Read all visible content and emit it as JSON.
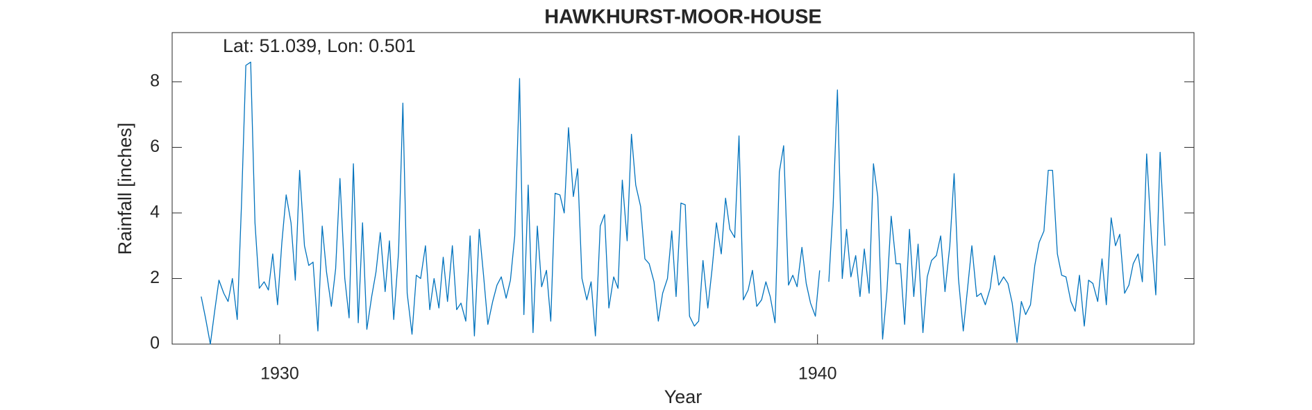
{
  "chart_data": {
    "type": "line",
    "title": "HAWKHURST-MOOR-HOUSE",
    "annotation": "Lat: 51.039, Lon: 0.501",
    "xlabel": "Year",
    "ylabel": "Rainfall [inches]",
    "color": "#0072BD",
    "xlim": [
      1928,
      1947
    ],
    "xticks": [
      1930,
      1940
    ],
    "ylim": [
      0,
      9.5
    ],
    "yticks": [
      0,
      2,
      4,
      6,
      8
    ],
    "grid": false,
    "x": [
      1928.54,
      1928.62,
      1928.71,
      1928.79,
      1928.87,
      1928.96,
      1929.04,
      1929.12,
      1929.21,
      1929.29,
      1929.37,
      1929.46,
      1929.54,
      1929.62,
      1929.71,
      1929.79,
      1929.87,
      1929.96,
      1930.04,
      1930.12,
      1930.21,
      1930.29,
      1930.37,
      1930.46,
      1930.54,
      1930.62,
      1930.71,
      1930.79,
      1930.87,
      1930.96,
      1931.04,
      1931.12,
      1931.21,
      1931.29,
      1931.37,
      1931.46,
      1931.54,
      1931.62,
      1931.71,
      1931.79,
      1931.87,
      1931.96,
      1932.04,
      1932.12,
      1932.21,
      1932.29,
      1932.37,
      1932.46,
      1932.54,
      1932.62,
      1932.71,
      1932.79,
      1932.87,
      1932.96,
      1933.04,
      1933.12,
      1933.21,
      1933.29,
      1933.37,
      1933.46,
      1933.54,
      1933.62,
      1933.71,
      1933.79,
      1933.87,
      1933.96,
      1934.04,
      1934.12,
      1934.21,
      1934.29,
      1934.37,
      1934.46,
      1934.54,
      1934.62,
      1934.71,
      1934.79,
      1934.87,
      1934.96,
      1935.04,
      1935.12,
      1935.21,
      1935.29,
      1935.37,
      1935.46,
      1935.54,
      1935.62,
      1935.71,
      1935.79,
      1935.87,
      1935.96,
      1936.04,
      1936.12,
      1936.21,
      1936.29,
      1936.37,
      1936.46,
      1936.54,
      1936.62,
      1936.71,
      1936.79,
      1936.87,
      1936.96,
      1937.04,
      1937.12,
      1937.21,
      1937.29,
      1937.37,
      1937.46,
      1937.54,
      1937.62,
      1937.71,
      1937.79,
      1937.87,
      1937.96,
      1938.04,
      1938.12,
      1938.21,
      1938.29,
      1938.37,
      1938.46,
      1938.54,
      1938.62,
      1938.71,
      1938.79,
      1938.87,
      1938.96,
      1939.04,
      1939.12,
      1939.21,
      1939.29,
      1939.37,
      1939.46,
      1939.54,
      1939.62,
      1939.71,
      1939.79,
      1939.87,
      1939.96,
      1940.04,
      1940.12,
      1940.21,
      1940.29,
      1940.37,
      1940.46,
      1940.54,
      1940.62,
      1940.71,
      1940.79,
      1940.87,
      1940.96,
      1941.04,
      1941.12,
      1941.21,
      1941.29,
      1941.37,
      1941.46,
      1941.54,
      1941.62,
      1941.71,
      1941.79,
      1941.87,
      1941.96,
      1942.04,
      1942.12,
      1942.21,
      1942.29,
      1942.37,
      1942.46,
      1942.54,
      1942.62,
      1942.71,
      1942.79,
      1942.87,
      1942.96,
      1943.04,
      1943.12,
      1943.21,
      1943.29,
      1943.37,
      1943.46,
      1943.54,
      1943.62,
      1943.71,
      1943.79,
      1943.87,
      1943.96,
      1944.04,
      1944.12,
      1944.21,
      1944.29,
      1944.37,
      1944.46,
      1944.54,
      1944.62,
      1944.71,
      1944.79,
      1944.87,
      1944.96,
      1945.04,
      1945.12,
      1945.21,
      1945.29,
      1945.37,
      1945.46,
      1945.54,
      1945.62,
      1945.71,
      1945.79,
      1945.87,
      1945.96,
      1946.04,
      1946.12,
      1946.21,
      1946.29,
      1946.37,
      1946.46
    ],
    "values": [
      1.45,
      0.8,
      0,
      1.0,
      1.95,
      1.55,
      1.3,
      2.0,
      0.75,
      4.3,
      8.5,
      8.6,
      3.7,
      1.7,
      1.9,
      1.65,
      2.75,
      1.2,
      3.1,
      4.55,
      3.7,
      1.95,
      5.3,
      3.0,
      2.4,
      2.5,
      0.4,
      3.6,
      2.2,
      1.15,
      2.3,
      5.05,
      2.0,
      0.8,
      5.5,
      0.65,
      3.7,
      0.45,
      1.45,
      2.2,
      3.4,
      1.6,
      3.15,
      0.75,
      2.8,
      7.35,
      1.55,
      0.3,
      2.1,
      2.0,
      3.0,
      1.05,
      2.0,
      1.1,
      2.65,
      1.3,
      3.0,
      1.05,
      1.25,
      0.7,
      3.3,
      0.25,
      3.5,
      2.1,
      0.6,
      1.3,
      1.8,
      2.05,
      1.4,
      1.95,
      3.3,
      8.1,
      0.9,
      4.85,
      0.35,
      3.6,
      1.75,
      2.25,
      0.7,
      4.6,
      4.55,
      4.0,
      6.6,
      4.5,
      5.35,
      2.0,
      1.35,
      1.9,
      0.25,
      3.6,
      3.95,
      1.1,
      2.05,
      1.7,
      5.0,
      3.15,
      6.4,
      4.85,
      4.2,
      2.6,
      2.45,
      1.9,
      0.7,
      1.55,
      2.0,
      3.45,
      1.45,
      4.3,
      4.25,
      0.85,
      0.55,
      0.7,
      2.55,
      1.1,
      2.3,
      3.7,
      2.75,
      4.45,
      3.5,
      3.25,
      6.35,
      1.35,
      1.65,
      2.25,
      1.15,
      1.35,
      1.9,
      1.45,
      0.65,
      5.25,
      6.05,
      1.8,
      2.1,
      1.75,
      2.95,
      1.85,
      1.25,
      0.85,
      2.25,
      null,
      1.9,
      4.2,
      7.75,
      2.0,
      3.5,
      2.05,
      2.7,
      1.45,
      2.9,
      1.55,
      5.5,
      4.5,
      0.15,
      1.6,
      3.9,
      2.45,
      2.45,
      0.6,
      3.5,
      1.45,
      3.05,
      0.35,
      2.05,
      2.55,
      2.7,
      3.3,
      1.6,
      3.0,
      5.2,
      2.0,
      0.4,
      1.7,
      3.0,
      1.45,
      1.55,
      1.2,
      1.7,
      2.7,
      1.8,
      2.05,
      1.85,
      1.25,
      0.05,
      1.3,
      0.9,
      1.2,
      2.4,
      3.1,
      3.45,
      5.3,
      5.3,
      2.75,
      2.1,
      2.05,
      1.3,
      1.0,
      2.1,
      0.55,
      1.95,
      1.85,
      1.3,
      2.6,
      1.2,
      3.85,
      3.0,
      3.35,
      1.55,
      1.8,
      2.45,
      2.75,
      1.9,
      5.8,
      3.2,
      1.5,
      5.85,
      3.0
    ]
  }
}
